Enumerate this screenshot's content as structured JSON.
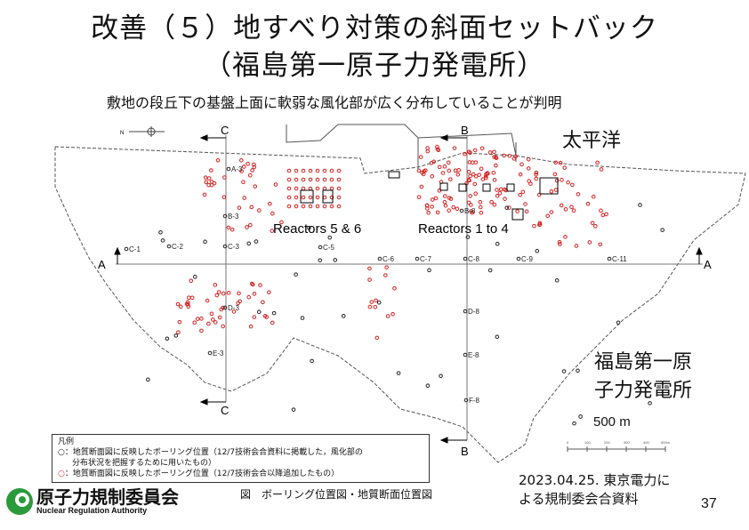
{
  "slide": {
    "title_line1": "改善（５）地すべり対策の斜面セットバック",
    "title_line2": "（福島第一原子力発電所）",
    "subtitle": "敷地の段丘下の基盤上面に軟弱な風化部が広く分布していることが判明",
    "page_number": "37"
  },
  "map": {
    "ocean_label": "太平洋",
    "site_label_line1": "福島第一原",
    "site_label_line2": "子力発電所",
    "reactors_5_6": "Reactors 5 & 6",
    "reactors_1_4": "Reactors 1 to 4",
    "north_label": "N",
    "section_labels": {
      "A_left": "A",
      "A_right": "A",
      "B_top": "B",
      "B_bottom": "B",
      "C_top": "C",
      "C_bottom": "C"
    },
    "boring_labels": [
      "A-3",
      "B-3",
      "B-8",
      "C-1",
      "C-2",
      "C-3",
      "C-5",
      "C-6",
      "C-7",
      "C-8",
      "C-9",
      "C-11",
      "D-3",
      "D-8",
      "E-3",
      "E-8",
      "F-8"
    ],
    "scale_label": "500 m",
    "scale_ticks": [
      "0",
      "100",
      "200",
      "300",
      "400",
      "500m"
    ],
    "colors": {
      "red_point": "#d42020",
      "black_point": "#222222",
      "line": "#555555"
    }
  },
  "legend": {
    "title": "凡例",
    "black_entry_line1": "○：地質断面図に反映したボーリング位置（12/7技術会合資料に掲載した，風化部の",
    "black_entry_line2": "分布状況を把握するために用いたもの）",
    "red_entry": "○：地質断面図に反映したボーリング位置（12/7技術会合以降追加したもの）"
  },
  "caption": "図　ボーリング位置図・地質断面位置図",
  "source_line1": "2023.04.25. 東京電力に",
  "source_line2": "よる規制委会合資料",
  "logo": {
    "jp": "原子力規制委員会",
    "en": "Nuclear Regulation Authority"
  }
}
